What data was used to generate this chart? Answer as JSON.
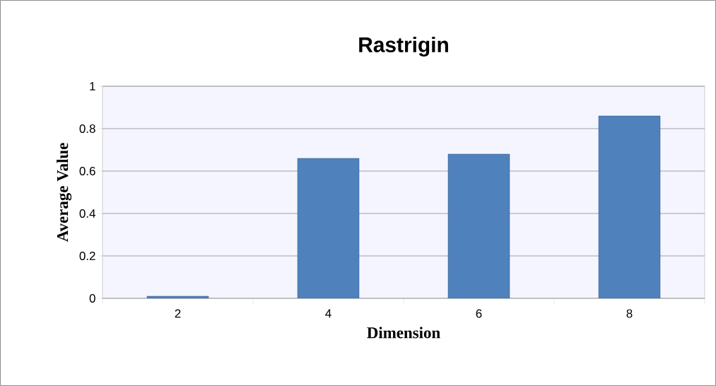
{
  "chart_data": {
    "type": "bar",
    "title": "Rastrigin",
    "xlabel": "Dimension",
    "ylabel": "Average Value",
    "categories": [
      "2",
      "4",
      "6",
      "8"
    ],
    "values": [
      0.01,
      0.66,
      0.68,
      0.86
    ],
    "color": "#4f81bd",
    "ylim": [
      0,
      1
    ],
    "yticks": [
      0,
      0.2,
      0.4,
      0.6,
      0.8,
      1
    ],
    "grid": "y"
  }
}
